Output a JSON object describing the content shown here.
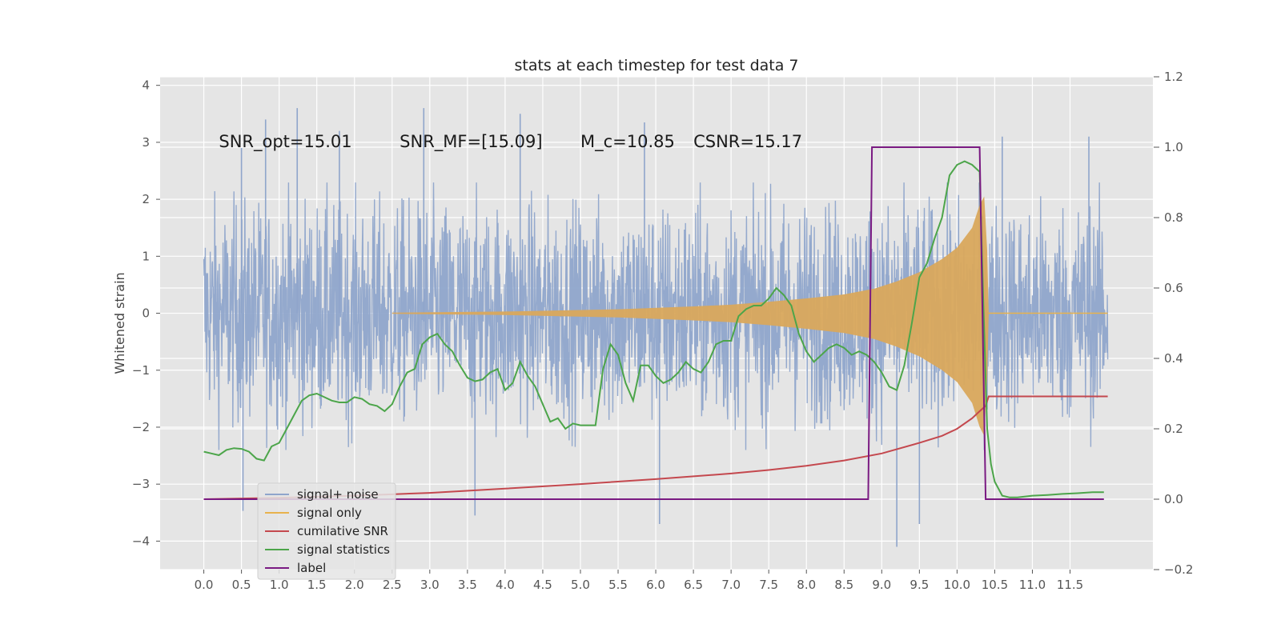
{
  "chart_data": {
    "type": "line",
    "title": "stats at each timestep for test data 7",
    "ylabel": "Whitened strain",
    "y2label": "",
    "xlim": [
      -0.58,
      12.6
    ],
    "ylim": [
      -4.5,
      4.15
    ],
    "y2lim": [
      -0.2,
      1.2
    ],
    "xticks": [
      0.0,
      0.5,
      1.0,
      1.5,
      2.0,
      2.5,
      3.0,
      3.5,
      4.0,
      4.5,
      5.0,
      5.5,
      6.0,
      6.5,
      7.0,
      7.5,
      8.0,
      8.5,
      9.0,
      9.5,
      10.0,
      10.5,
      11.0,
      11.5
    ],
    "xtick_labels": [
      "0.0",
      "0.5",
      "1.0",
      "1.5",
      "2.0",
      "2.5",
      "3.0",
      "3.5",
      "4.0",
      "4.5",
      "5.0",
      "5.5",
      "6.0",
      "6.5",
      "7.0",
      "7.5",
      "8.0",
      "8.5",
      "9.0",
      "9.5",
      "10.0",
      "10.5",
      "11.0",
      "11.5"
    ],
    "yticks": [
      -4,
      -3,
      -2,
      -1,
      0,
      1,
      2,
      3,
      4
    ],
    "ytick_labels": [
      "−4",
      "−3",
      "−2",
      "−1",
      "0",
      "1",
      "2",
      "3",
      "4"
    ],
    "y2ticks": [
      -0.2,
      0.0,
      0.2,
      0.4,
      0.6,
      0.8,
      1.0,
      1.2
    ],
    "y2tick_labels": [
      "−0.2",
      "0.0",
      "0.2",
      "0.4",
      "0.6",
      "0.8",
      "1.0",
      "1.2"
    ],
    "grid": true,
    "legend_placement": "lower-left",
    "annotations": [
      {
        "text": "SNR_opt=15.01",
        "x": 0.2,
        "y": 3.0
      },
      {
        "text": "SNR_MF=[15.09]",
        "x": 2.6,
        "y": 3.0
      },
      {
        "text": "M_c=10.85",
        "x": 5.0,
        "y": 3.0
      },
      {
        "text": "CSNR=15.17",
        "x": 6.5,
        "y": 3.0
      }
    ],
    "series": [
      {
        "name": "signal+ noise",
        "axis": "left",
        "color": "#8fa5cb",
        "x_range": [
          0.0,
          12.0
        ],
        "envelope_upper": 1.7,
        "envelope_lower": -2.0,
        "extremes": [
          [
            0.5,
            2.9
          ],
          [
            0.82,
            3.4
          ],
          [
            1.24,
            3.6
          ],
          [
            1.8,
            3.2
          ],
          [
            2.92,
            3.6
          ],
          [
            3.6,
            -3.55
          ],
          [
            4.2,
            3.5
          ],
          [
            5.85,
            3.35
          ],
          [
            6.05,
            -3.7
          ],
          [
            9.2,
            -4.1
          ],
          [
            9.5,
            -3.7
          ],
          [
            10.6,
            3.1
          ],
          [
            11.75,
            3.1
          ],
          [
            0.52,
            -3.47
          ]
        ]
      },
      {
        "name": "signal only",
        "axis": "left",
        "color": "#e8b24d",
        "fill": "#d9a85c",
        "amplitude": [
          [
            2.5,
            0.01
          ],
          [
            4.0,
            0.03
          ],
          [
            5.5,
            0.07
          ],
          [
            6.5,
            0.12
          ],
          [
            7.0,
            0.15
          ],
          [
            7.5,
            0.2
          ],
          [
            8.0,
            0.26
          ],
          [
            8.5,
            0.33
          ],
          [
            8.9,
            0.43
          ],
          [
            9.2,
            0.56
          ],
          [
            9.5,
            0.72
          ],
          [
            9.8,
            0.95
          ],
          [
            10.0,
            1.15
          ],
          [
            10.2,
            1.5
          ],
          [
            10.3,
            1.9
          ],
          [
            10.36,
            2.05
          ],
          [
            10.4,
            1.1
          ],
          [
            10.42,
            0.0
          ]
        ]
      },
      {
        "name": "cumilative SNR",
        "axis": "right",
        "color": "#c4484e",
        "x": [
          0.0,
          1.0,
          2.0,
          3.0,
          4.0,
          5.0,
          6.0,
          7.0,
          7.5,
          8.0,
          8.5,
          9.0,
          9.5,
          9.8,
          10.0,
          10.2,
          10.3,
          10.38,
          10.42,
          11.0,
          11.5,
          12.0
        ],
        "values": [
          0.0,
          0.004,
          0.01,
          0.018,
          0.03,
          0.043,
          0.057,
          0.073,
          0.083,
          0.095,
          0.11,
          0.13,
          0.16,
          0.18,
          0.2,
          0.23,
          0.25,
          0.265,
          0.292,
          0.292,
          0.292,
          0.292
        ]
      },
      {
        "name": "signal statistics",
        "axis": "right",
        "color": "#4ca54a",
        "x": [
          0.0,
          0.1,
          0.2,
          0.3,
          0.4,
          0.5,
          0.6,
          0.7,
          0.8,
          0.9,
          1.0,
          1.1,
          1.2,
          1.3,
          1.4,
          1.5,
          1.6,
          1.7,
          1.8,
          1.9,
          2.0,
          2.1,
          2.2,
          2.3,
          2.4,
          2.5,
          2.6,
          2.7,
          2.8,
          2.9,
          3.0,
          3.1,
          3.2,
          3.3,
          3.4,
          3.5,
          3.6,
          3.7,
          3.8,
          3.9,
          4.0,
          4.1,
          4.2,
          4.3,
          4.4,
          4.5,
          4.6,
          4.7,
          4.8,
          4.9,
          5.0,
          5.1,
          5.2,
          5.3,
          5.4,
          5.5,
          5.6,
          5.7,
          5.8,
          5.9,
          6.0,
          6.1,
          6.2,
          6.3,
          6.4,
          6.5,
          6.6,
          6.7,
          6.8,
          6.9,
          7.0,
          7.1,
          7.2,
          7.3,
          7.4,
          7.5,
          7.6,
          7.7,
          7.8,
          7.9,
          8.0,
          8.1,
          8.2,
          8.3,
          8.4,
          8.5,
          8.6,
          8.7,
          8.8,
          8.9,
          9.0,
          9.1,
          9.2,
          9.3,
          9.4,
          9.5,
          9.6,
          9.7,
          9.8,
          9.9,
          10.0,
          10.1,
          10.2,
          10.3,
          10.35,
          10.4,
          10.45,
          10.5,
          10.6,
          10.7,
          10.8,
          11.0,
          11.2,
          11.4,
          11.6,
          11.8,
          11.95
        ],
        "values": [
          0.135,
          0.13,
          0.125,
          0.14,
          0.145,
          0.143,
          0.135,
          0.115,
          0.11,
          0.15,
          0.16,
          0.2,
          0.24,
          0.28,
          0.295,
          0.3,
          0.29,
          0.28,
          0.275,
          0.275,
          0.29,
          0.285,
          0.27,
          0.265,
          0.25,
          0.27,
          0.32,
          0.36,
          0.37,
          0.44,
          0.46,
          0.47,
          0.44,
          0.42,
          0.38,
          0.345,
          0.335,
          0.34,
          0.36,
          0.37,
          0.31,
          0.33,
          0.39,
          0.35,
          0.32,
          0.27,
          0.22,
          0.23,
          0.2,
          0.215,
          0.21,
          0.21,
          0.21,
          0.37,
          0.44,
          0.41,
          0.33,
          0.28,
          0.38,
          0.38,
          0.35,
          0.33,
          0.34,
          0.36,
          0.39,
          0.37,
          0.36,
          0.39,
          0.44,
          0.45,
          0.45,
          0.52,
          0.54,
          0.55,
          0.55,
          0.57,
          0.6,
          0.58,
          0.55,
          0.47,
          0.42,
          0.39,
          0.41,
          0.43,
          0.44,
          0.43,
          0.41,
          0.42,
          0.41,
          0.39,
          0.36,
          0.32,
          0.31,
          0.38,
          0.5,
          0.63,
          0.67,
          0.74,
          0.8,
          0.92,
          0.95,
          0.96,
          0.95,
          0.93,
          0.55,
          0.2,
          0.1,
          0.05,
          0.01,
          0.005,
          0.005,
          0.01,
          0.012,
          0.015,
          0.017,
          0.02,
          0.02
        ]
      },
      {
        "name": "label",
        "axis": "right",
        "color": "#7a1a82",
        "x": [
          0.0,
          8.82,
          8.87,
          10.3,
          10.38,
          11.95
        ],
        "values": [
          0.0,
          0.0,
          1.0,
          1.0,
          0.0,
          0.0
        ]
      }
    ]
  }
}
